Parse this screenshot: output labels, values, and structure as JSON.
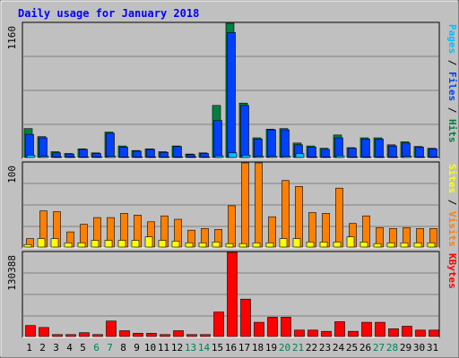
{
  "title": "Daily usage for January 2018",
  "colors": {
    "background": "#c0c0c0",
    "panel": "#c0c0c0",
    "title": "#0000ff",
    "hits": "#008040",
    "files": "#0040ff",
    "pages": "#00c0ff",
    "visits": "#ff8000",
    "sites": "#ffff00",
    "kbytes": "#ff0000",
    "weekend_label": "#00805c",
    "weekday_label": "#000000"
  },
  "right_labels": {
    "top": [
      {
        "text": "Pages",
        "color_key": "pages"
      },
      {
        "text": " / ",
        "color_key": "weekday_label"
      },
      {
        "text": "Files",
        "color_key": "files"
      },
      {
        "text": " / ",
        "color_key": "weekday_label"
      },
      {
        "text": "Hits",
        "color_key": "hits"
      }
    ],
    "middle": [
      {
        "text": "Sites",
        "color_key": "sites"
      },
      {
        "text": " / ",
        "color_key": "weekday_label"
      },
      {
        "text": "Visits",
        "color_key": "visits"
      }
    ],
    "bottom": [
      {
        "text": "KBytes",
        "color_key": "kbytes"
      }
    ]
  },
  "chart_data": [
    {
      "type": "bar",
      "title": "Daily usage for January 2018",
      "ylabel_max": "1160",
      "ylim": [
        0,
        1160
      ],
      "categories": [
        "1",
        "2",
        "3",
        "4",
        "5",
        "6",
        "7",
        "8",
        "9",
        "10",
        "11",
        "12",
        "13",
        "14",
        "15",
        "16",
        "17",
        "18",
        "19",
        "20",
        "21",
        "22",
        "23",
        "24",
        "25",
        "26",
        "27",
        "28",
        "29",
        "30",
        "31"
      ],
      "weekend_days": [
        "6",
        "7",
        "13",
        "14",
        "20",
        "21",
        "27",
        "28"
      ],
      "series": [
        {
          "name": "Hits",
          "values": [
            250,
            180,
            50,
            35,
            75,
            40,
            220,
            100,
            60,
            75,
            50,
            100,
            30,
            40,
            450,
            1160,
            470,
            170,
            245,
            250,
            125,
            100,
            80,
            195,
            85,
            170,
            170,
            110,
            135,
            95,
            80
          ]
        },
        {
          "name": "Files",
          "values": [
            200,
            170,
            40,
            30,
            70,
            35,
            210,
            90,
            55,
            70,
            45,
            95,
            25,
            35,
            320,
            1080,
            450,
            160,
            240,
            240,
            110,
            90,
            70,
            170,
            80,
            160,
            160,
            100,
            125,
            90,
            75
          ]
        },
        {
          "name": "Pages",
          "values": [
            20,
            10,
            5,
            5,
            5,
            5,
            10,
            5,
            5,
            5,
            5,
            5,
            5,
            5,
            15,
            40,
            20,
            10,
            10,
            10,
            35,
            5,
            5,
            15,
            5,
            5,
            5,
            5,
            10,
            5,
            5
          ]
        }
      ]
    },
    {
      "type": "bar",
      "ylabel_max": "100",
      "ylim": [
        0,
        100
      ],
      "categories": [
        "1",
        "2",
        "3",
        "4",
        "5",
        "6",
        "7",
        "8",
        "9",
        "10",
        "11",
        "12",
        "13",
        "14",
        "15",
        "16",
        "17",
        "18",
        "19",
        "20",
        "21",
        "22",
        "23",
        "24",
        "25",
        "26",
        "27",
        "28",
        "29",
        "30",
        "31"
      ],
      "series": [
        {
          "name": "Visits",
          "values": [
            10,
            43,
            42,
            18,
            27,
            35,
            35,
            40,
            38,
            30,
            37,
            33,
            20,
            22,
            21,
            49,
            100,
            100,
            36,
            79,
            72,
            41,
            40,
            70,
            28,
            37,
            23,
            22,
            23,
            22,
            22
          ]
        },
        {
          "name": "Sites",
          "values": [
            3,
            10,
            10,
            5,
            5,
            8,
            8,
            8,
            8,
            12,
            8,
            7,
            5,
            5,
            6,
            4,
            4,
            5,
            5,
            10,
            10,
            6,
            6,
            6,
            12,
            6,
            4,
            5,
            5,
            5,
            5
          ]
        }
      ]
    },
    {
      "type": "bar",
      "ylabel_max": "130388",
      "ylim": [
        0,
        130388
      ],
      "categories": [
        "1",
        "2",
        "3",
        "4",
        "5",
        "6",
        "7",
        "8",
        "9",
        "10",
        "11",
        "12",
        "13",
        "14",
        "15",
        "16",
        "17",
        "18",
        "19",
        "20",
        "21",
        "22",
        "23",
        "24",
        "25",
        "26",
        "27",
        "28",
        "29",
        "30",
        "31"
      ],
      "series": [
        {
          "name": "KBytes",
          "values": [
            17000,
            14000,
            3000,
            3000,
            6000,
            3000,
            24000,
            9000,
            5000,
            5000,
            3000,
            9000,
            3000,
            3000,
            38000,
            130388,
            58000,
            22000,
            30000,
            30000,
            10000,
            10000,
            8000,
            23000,
            8000,
            22000,
            22000,
            12000,
            16000,
            10000,
            10000
          ]
        }
      ]
    }
  ]
}
